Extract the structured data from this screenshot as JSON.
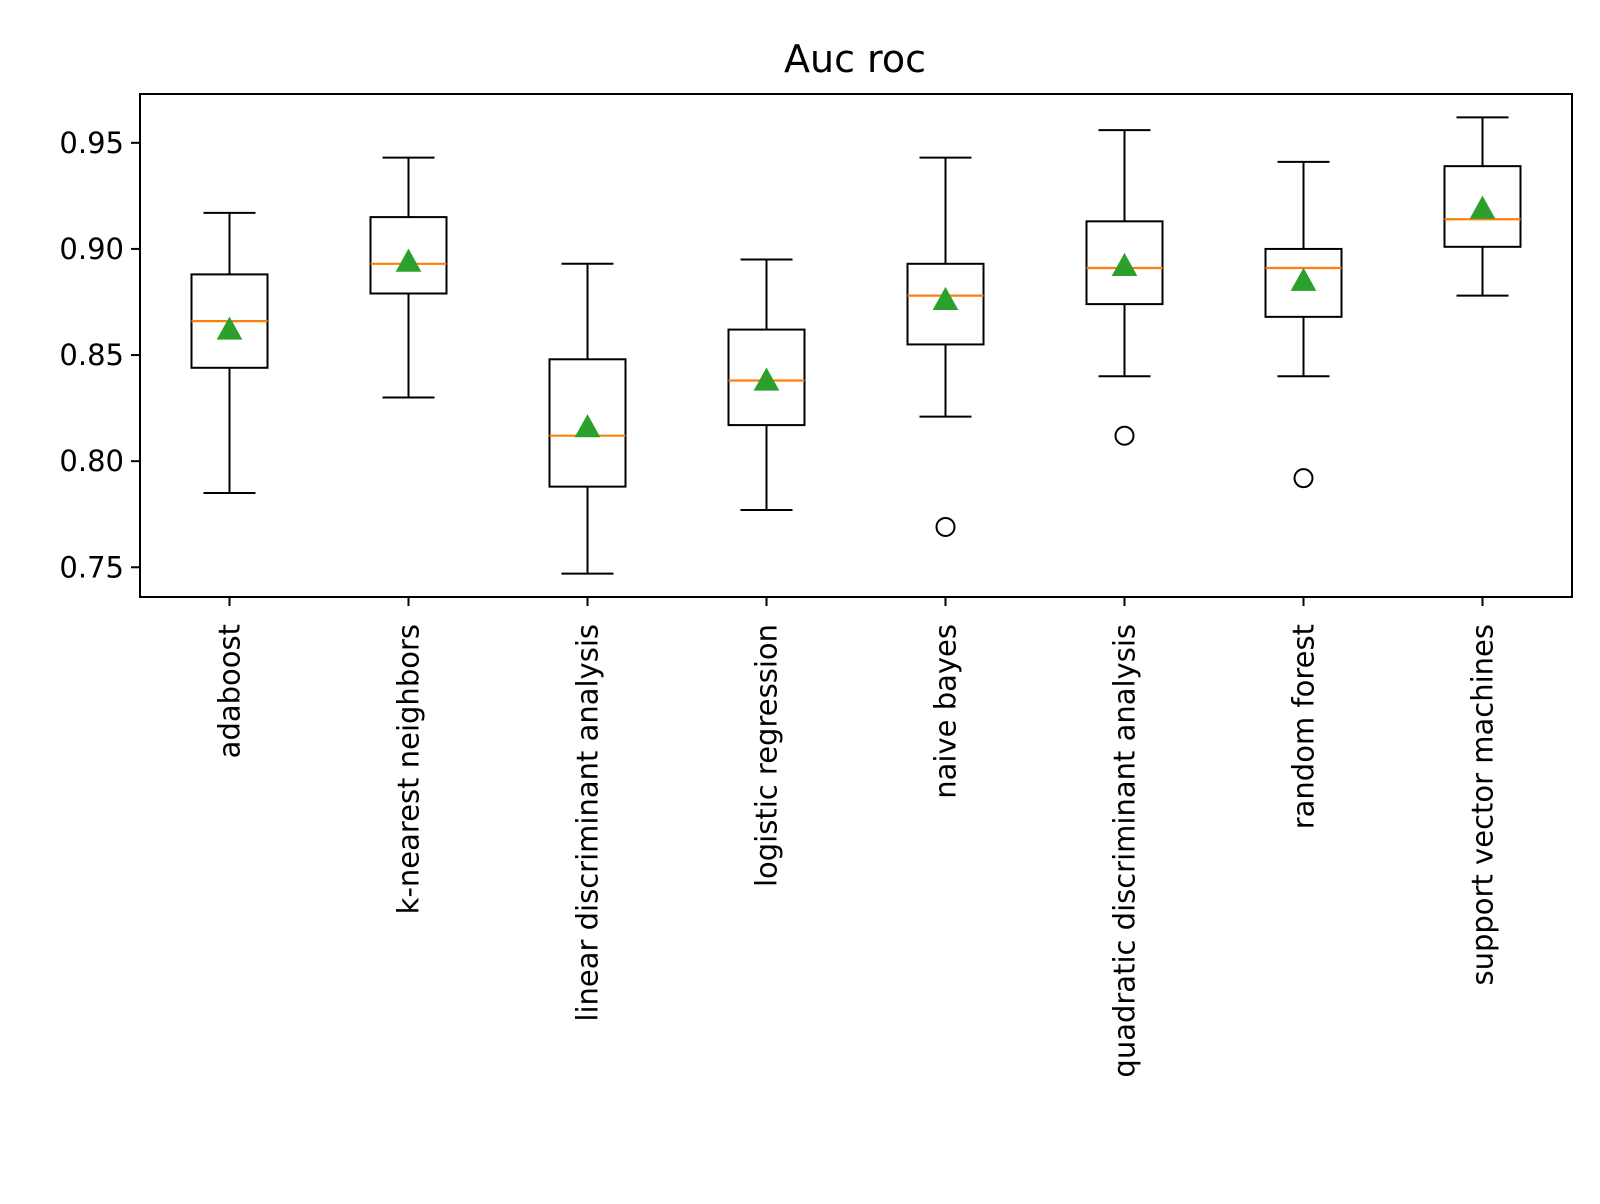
{
  "chart_data": {
    "type": "box",
    "title": "Auc roc",
    "xlabel": "",
    "ylabel": "",
    "ylim": [
      0.736,
      0.973
    ],
    "yticks": [
      {
        "value": 0.75,
        "label": "0.75"
      },
      {
        "value": 0.8,
        "label": "0.80"
      },
      {
        "value": 0.85,
        "label": "0.85"
      },
      {
        "value": 0.9,
        "label": "0.90"
      },
      {
        "value": 0.95,
        "label": "0.95"
      }
    ],
    "grid": false,
    "legend": "none",
    "colors": {
      "box": "#000000",
      "median": "#ff7f0e",
      "mean_marker": "#2ca02c",
      "axes": "#000000"
    },
    "categories": [
      "adaboost",
      "k-nearest neighbors",
      "linear discriminant analysis",
      "logistic regression",
      "naive bayes",
      "quadratic discriminant analysis",
      "random forest",
      "support vector machines"
    ],
    "boxes": [
      {
        "whislo": 0.785,
        "q1": 0.844,
        "med": 0.866,
        "q3": 0.888,
        "whishi": 0.917,
        "mean": 0.862,
        "fliers": []
      },
      {
        "whislo": 0.83,
        "q1": 0.879,
        "med": 0.893,
        "q3": 0.915,
        "whishi": 0.943,
        "mean": 0.894,
        "fliers": []
      },
      {
        "whislo": 0.747,
        "q1": 0.788,
        "med": 0.812,
        "q3": 0.848,
        "whishi": 0.893,
        "mean": 0.816,
        "fliers": []
      },
      {
        "whislo": 0.777,
        "q1": 0.817,
        "med": 0.838,
        "q3": 0.862,
        "whishi": 0.895,
        "mean": 0.838,
        "fliers": []
      },
      {
        "whislo": 0.821,
        "q1": 0.855,
        "med": 0.878,
        "q3": 0.893,
        "whishi": 0.943,
        "mean": 0.876,
        "fliers": [
          0.769
        ]
      },
      {
        "whislo": 0.84,
        "q1": 0.874,
        "med": 0.891,
        "q3": 0.913,
        "whishi": 0.956,
        "mean": 0.892,
        "fliers": [
          0.812
        ]
      },
      {
        "whislo": 0.84,
        "q1": 0.868,
        "med": 0.891,
        "q3": 0.9,
        "whishi": 0.941,
        "mean": 0.885,
        "fliers": [
          0.792
        ]
      },
      {
        "whislo": 0.878,
        "q1": 0.901,
        "med": 0.914,
        "q3": 0.939,
        "whishi": 0.962,
        "mean": 0.919,
        "fliers": []
      }
    ]
  }
}
